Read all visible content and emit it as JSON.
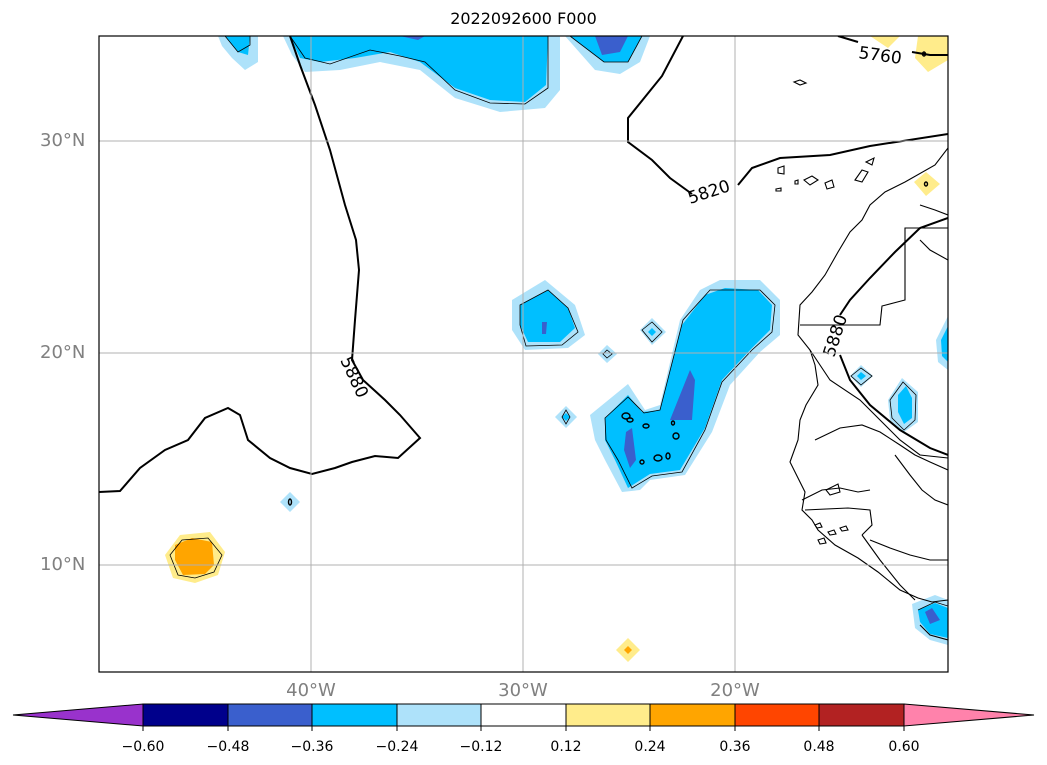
{
  "title": "2022092600 F000",
  "map": {
    "lat_labels": [
      "30°N",
      "20°N",
      "10°N"
    ],
    "lon_labels": [
      "40°W",
      "30°W",
      "20°W"
    ],
    "contour_labels": [
      "5760",
      "5820",
      "5880",
      "5880"
    ]
  },
  "colorbar": {
    "labels": [
      "−0.60",
      "−0.48",
      "−0.36",
      "−0.24",
      "−0.12",
      "0.12",
      "0.24",
      "0.36",
      "0.48",
      "0.60"
    ],
    "colors": {
      "under": "#9932CC",
      "bins": [
        "#00008B",
        "#3A5FCD",
        "#00BFFF",
        "#AEE2FA",
        "#FFFFFF",
        "#FFEC8B",
        "#FFA500",
        "#FF4500",
        "#B22222"
      ],
      "over": "#FF82AB",
      "deep_blue": "#3A5FCD",
      "sky_blue": "#00BFFF",
      "light_blue": "#AEE2FA",
      "light_yellow": "#FFEC8B",
      "orange": "#FFA500"
    }
  }
}
